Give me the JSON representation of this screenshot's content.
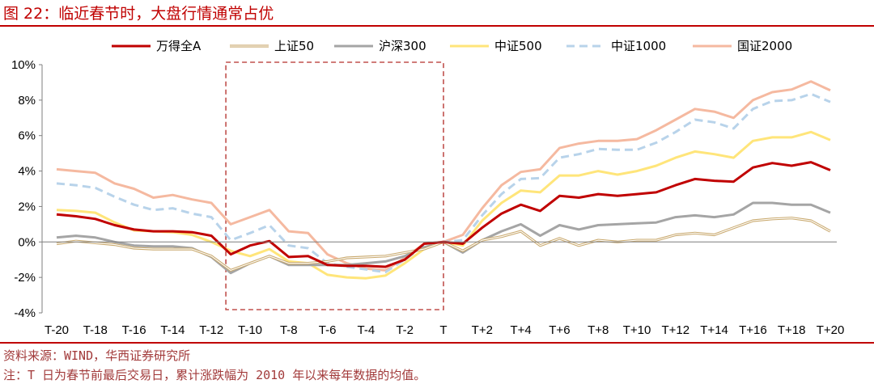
{
  "title": "图 22：临近春节时，大盘行情通常占优",
  "source": "资料来源：WIND，华西证券研究所",
  "footnote": "注：T 日为春节前最后交易日，累计涨跌幅为 2010 年以来每年数据的均值。",
  "chart_data": {
    "type": "line",
    "x": [
      "T-20",
      "T-19",
      "T-18",
      "T-17",
      "T-16",
      "T-15",
      "T-14",
      "T-13",
      "T-12",
      "T-11",
      "T-10",
      "T-9",
      "T-8",
      "T-7",
      "T-6",
      "T-5",
      "T-4",
      "T-3",
      "T-2",
      "T-1",
      "T",
      "T+1",
      "T+2",
      "T+3",
      "T+4",
      "T+5",
      "T+6",
      "T+7",
      "T+8",
      "T+9",
      "T+10",
      "T+11",
      "T+12",
      "T+13",
      "T+14",
      "T+15",
      "T+16",
      "T+17",
      "T+18",
      "T+19",
      "T+20"
    ],
    "x_tick_labels": [
      "T-20",
      "T-18",
      "T-16",
      "T-14",
      "T-12",
      "T-10",
      "T-8",
      "T-6",
      "T-4",
      "T-2",
      "T",
      "T+2",
      "T+4",
      "T+6",
      "T+8",
      "T+10",
      "T+12",
      "T+14",
      "T+16",
      "T+18",
      "T+20"
    ],
    "y_unit": "%",
    "ylim": [
      -4,
      10
    ],
    "y_ticks": [
      "10%",
      "8%",
      "6%",
      "4%",
      "2%",
      "0%",
      "-2%",
      "-4%"
    ],
    "legend_position": "top",
    "highlight_box": {
      "x_from": "T-11",
      "x_to": "T",
      "color": "#c0504d",
      "style": "dashed"
    },
    "series": [
      {
        "name": "万得全A",
        "color": "#c00000",
        "style": "solid-thick",
        "values": [
          1.55,
          1.45,
          1.3,
          0.95,
          0.7,
          0.6,
          0.6,
          0.55,
          0.35,
          -0.7,
          -0.2,
          0.05,
          -0.85,
          -0.8,
          -1.3,
          -1.35,
          -1.35,
          -1.4,
          -1.0,
          -0.1,
          0.0,
          -0.1,
          0.8,
          1.6,
          2.1,
          1.75,
          2.6,
          2.5,
          2.7,
          2.6,
          2.7,
          2.8,
          3.2,
          3.55,
          3.45,
          3.4,
          4.2,
          4.45,
          4.3,
          4.5,
          4.05
        ]
      },
      {
        "name": "上证50",
        "color": "#c9a96e",
        "style": "double",
        "values": [
          -0.1,
          0.05,
          -0.05,
          -0.15,
          -0.35,
          -0.4,
          -0.4,
          -0.4,
          -0.8,
          -1.6,
          -1.2,
          -0.8,
          -1.2,
          -1.2,
          -1.1,
          -0.9,
          -0.85,
          -0.8,
          -0.6,
          -0.4,
          0.0,
          -0.5,
          0.1,
          0.3,
          0.6,
          -0.2,
          0.2,
          -0.2,
          0.1,
          0.0,
          0.1,
          0.1,
          0.4,
          0.5,
          0.4,
          0.8,
          1.2,
          1.3,
          1.35,
          1.2,
          0.6
        ]
      },
      {
        "name": "沪深300",
        "color": "#a5a5a5",
        "style": "solid",
        "values": [
          0.25,
          0.35,
          0.25,
          0.0,
          -0.2,
          -0.25,
          -0.25,
          -0.35,
          -0.85,
          -1.75,
          -1.2,
          -0.8,
          -1.3,
          -1.3,
          -1.3,
          -1.3,
          -1.2,
          -1.1,
          -0.8,
          -0.3,
          0.0,
          -0.6,
          0.1,
          0.6,
          1.0,
          0.35,
          0.95,
          0.7,
          0.95,
          1.0,
          1.05,
          1.1,
          1.4,
          1.5,
          1.4,
          1.55,
          2.2,
          2.2,
          2.1,
          2.1,
          1.65
        ]
      },
      {
        "name": "中证500",
        "color": "#ffe57a",
        "style": "solid",
        "values": [
          1.8,
          1.75,
          1.65,
          1.1,
          0.65,
          0.6,
          0.55,
          0.4,
          0.0,
          -0.5,
          -0.8,
          -0.4,
          -1.1,
          -1.2,
          -1.85,
          -2.0,
          -2.05,
          -1.9,
          -1.2,
          -0.4,
          0.0,
          -0.2,
          1.2,
          2.2,
          2.9,
          2.8,
          3.75,
          3.75,
          4.0,
          3.8,
          4.0,
          4.3,
          4.75,
          5.1,
          4.95,
          4.75,
          5.7,
          5.9,
          5.9,
          6.2,
          5.75
        ]
      },
      {
        "name": "中证1000",
        "color": "#b8d3ea",
        "style": "dashed",
        "values": [
          3.3,
          3.2,
          3.05,
          2.55,
          2.1,
          1.8,
          1.9,
          1.6,
          1.4,
          0.1,
          0.5,
          0.95,
          -0.2,
          -0.35,
          -1.2,
          -1.4,
          -1.55,
          -1.7,
          -1.0,
          -0.2,
          0.0,
          0.1,
          1.5,
          2.7,
          3.55,
          3.6,
          4.75,
          4.95,
          5.25,
          5.2,
          5.2,
          5.6,
          6.2,
          6.9,
          6.75,
          6.4,
          7.5,
          7.95,
          8.0,
          8.35,
          7.9
        ]
      },
      {
        "name": "国证2000",
        "color": "#f5b9a0",
        "style": "solid",
        "values": [
          4.1,
          4.0,
          3.9,
          3.3,
          3.0,
          2.5,
          2.65,
          2.4,
          2.2,
          1.0,
          1.4,
          1.8,
          0.6,
          0.5,
          -0.7,
          -1.2,
          -1.5,
          -1.6,
          -0.9,
          -0.1,
          0.0,
          0.4,
          1.9,
          3.2,
          3.95,
          4.1,
          5.3,
          5.55,
          5.7,
          5.7,
          5.8,
          6.3,
          6.9,
          7.5,
          7.35,
          7.0,
          8.0,
          8.45,
          8.6,
          9.05,
          8.55
        ]
      }
    ]
  }
}
